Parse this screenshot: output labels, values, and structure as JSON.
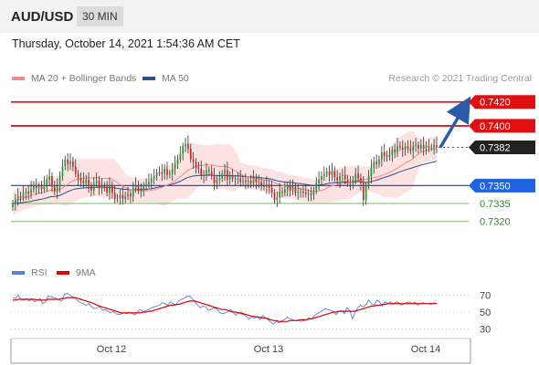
{
  "header": {
    "symbol": "AUD/USD",
    "timeframe": "30 MIN"
  },
  "datetime": "Thursday, October 14, 2021 1:54:36 AM CET",
  "legend": {
    "items": [
      {
        "label": "MA 20 + Bollinger Bands",
        "color": "#f08a86"
      },
      {
        "label": "MA 50",
        "color": "#2d4e8e"
      }
    ],
    "rsi_items": [
      {
        "label": "RSI",
        "color": "#5a7fd6"
      },
      {
        "label": "9MA",
        "color": "#e00000"
      }
    ]
  },
  "copyright": "Research © 2021 Trading Central",
  "colors": {
    "resistance": "#d91a1a",
    "pivot": "#1f56c8",
    "support": "#7cba6a",
    "arrow": "#2a5aa8"
  },
  "chart_data": [
    {
      "type": "candlestick",
      "title": "AUD/USD 30 MIN",
      "x_ticks": [
        "Oct 12",
        "Oct 13",
        "Oct 14"
      ],
      "price_range": [
        0.729,
        0.7432
      ],
      "levels": [
        {
          "label": "0.7420",
          "value": 0.742,
          "kind": "resistance"
        },
        {
          "label": "0.7400",
          "value": 0.74,
          "kind": "resistance"
        },
        {
          "label": "0.7382",
          "value": 0.7382,
          "kind": "last"
        },
        {
          "label": "0.7350",
          "value": 0.735,
          "kind": "pivot"
        },
        {
          "label": "0.7335",
          "value": 0.7335,
          "kind": "support"
        },
        {
          "label": "0.7320",
          "value": 0.732,
          "kind": "support"
        }
      ],
      "close": [
        0.7335,
        0.7338,
        0.7341,
        0.734,
        0.7344,
        0.7345,
        0.7343,
        0.7347,
        0.735,
        0.7348,
        0.7349,
        0.7347,
        0.7351,
        0.7355,
        0.7358,
        0.7349,
        0.7345,
        0.7349,
        0.7358,
        0.7366,
        0.7372,
        0.7368,
        0.737,
        0.7366,
        0.736,
        0.7356,
        0.7354,
        0.7352,
        0.7355,
        0.735,
        0.7346,
        0.7352,
        0.7354,
        0.7348,
        0.735,
        0.7349,
        0.7344,
        0.735,
        0.7344,
        0.7339,
        0.734,
        0.7342,
        0.7339,
        0.7341,
        0.7343,
        0.7341,
        0.7348,
        0.735,
        0.7346,
        0.7346,
        0.735,
        0.7351,
        0.7353,
        0.7356,
        0.7358,
        0.7361,
        0.7361,
        0.736,
        0.7364,
        0.7359,
        0.736,
        0.7364,
        0.7368,
        0.7372,
        0.7377,
        0.7383,
        0.7385,
        0.7381,
        0.7372,
        0.737,
        0.7365,
        0.7364,
        0.7358,
        0.7359,
        0.7363,
        0.7362,
        0.7358,
        0.7352,
        0.7355,
        0.7356,
        0.736,
        0.7363,
        0.7355,
        0.7358,
        0.7356,
        0.7356,
        0.7356,
        0.7353,
        0.7354,
        0.7353,
        0.7354,
        0.7352,
        0.7356,
        0.7353,
        0.7353,
        0.735,
        0.7349,
        0.7351,
        0.7348,
        0.7344,
        0.7338,
        0.734,
        0.7345,
        0.7344,
        0.7347,
        0.735,
        0.7346,
        0.7348,
        0.7344,
        0.7345,
        0.7345,
        0.7344,
        0.7343,
        0.7343,
        0.7342,
        0.7346,
        0.7352,
        0.7355,
        0.7358,
        0.736,
        0.7362,
        0.7359,
        0.7362,
        0.7357,
        0.7354,
        0.7358,
        0.7359,
        0.7355,
        0.7352,
        0.7352,
        0.7355,
        0.736,
        0.7356,
        0.7352,
        0.7338,
        0.735,
        0.7358,
        0.7365,
        0.737,
        0.7368,
        0.7372,
        0.7378,
        0.7375,
        0.7374,
        0.7376,
        0.738,
        0.7378,
        0.7383,
        0.7382,
        0.738,
        0.7383,
        0.7381,
        0.7379,
        0.7383,
        0.7384,
        0.7381,
        0.7384,
        0.7381,
        0.7383,
        0.7382,
        0.7382,
        0.7384,
        0.7382
      ],
      "forecast": {
        "from": "0.7382",
        "to": "0.7420"
      }
    },
    {
      "type": "line",
      "title": "RSI",
      "y_ticks": [
        "70",
        "50",
        "30"
      ],
      "ylim": [
        20,
        80
      ],
      "series": [
        {
          "name": "RSI",
          "values": [
            67,
            66,
            70,
            65,
            64,
            66,
            63,
            66,
            62,
            64,
            66,
            60,
            62,
            69,
            68,
            67,
            66,
            64,
            63,
            71,
            72,
            70,
            68,
            66,
            63,
            61,
            60,
            58,
            60,
            56,
            54,
            55,
            56,
            52,
            53,
            51,
            49,
            51,
            48,
            47,
            48,
            49,
            48,
            50,
            48,
            47,
            51,
            53,
            50,
            52,
            53,
            55,
            56,
            57,
            58,
            61,
            60,
            58,
            62,
            60,
            58,
            63,
            65,
            66,
            68,
            69,
            66,
            62,
            58,
            55,
            57,
            56,
            52,
            53,
            55,
            54,
            50,
            48,
            49,
            50,
            53,
            51,
            46,
            49,
            48,
            47,
            45,
            42,
            44,
            43,
            45,
            41,
            46,
            43,
            41,
            38,
            36,
            39,
            37,
            40,
            41,
            44,
            42,
            41,
            40,
            41,
            39,
            40,
            41,
            43,
            42,
            46,
            48,
            50,
            52,
            54,
            53,
            52,
            51,
            47,
            51,
            52,
            48,
            55,
            52,
            42,
            50,
            55,
            58,
            56,
            59,
            64,
            60,
            58,
            64,
            62,
            57,
            62,
            60,
            62,
            59,
            62,
            61,
            58,
            60,
            61,
            62,
            60,
            62,
            58,
            60,
            61,
            60,
            60,
            59,
            61,
            60
          ]
        },
        {
          "name": "9MA",
          "values": [
            64,
            64,
            65,
            65,
            65,
            65,
            65,
            65,
            65,
            64,
            64,
            64,
            64,
            65,
            65,
            65,
            65,
            65,
            66,
            66,
            67,
            67,
            67,
            67,
            66,
            65,
            64,
            63,
            62,
            61,
            60,
            58,
            57,
            56,
            55,
            54,
            53,
            52,
            51,
            50,
            49,
            49,
            49,
            49,
            49,
            49,
            49,
            49,
            50,
            50,
            51,
            51,
            52,
            53,
            54,
            55,
            56,
            57,
            58,
            58,
            59,
            59,
            60,
            61,
            62,
            63,
            63,
            63,
            62,
            61,
            60,
            59,
            58,
            57,
            56,
            55,
            54,
            53,
            53,
            52,
            51,
            50,
            50,
            49,
            49,
            48,
            47,
            46,
            45,
            45,
            44,
            44,
            43,
            43,
            42,
            41,
            40,
            40,
            39,
            39,
            39,
            39,
            40,
            40,
            40,
            40,
            41,
            41,
            41,
            42,
            42,
            43,
            44,
            45,
            46,
            47,
            48,
            49,
            50,
            50,
            51,
            51,
            51,
            51,
            51,
            51,
            51,
            52,
            53,
            54,
            55,
            56,
            57,
            57,
            58,
            58,
            59,
            59,
            60,
            60,
            60,
            60,
            60,
            60,
            60,
            60,
            60,
            60,
            60,
            60,
            60,
            60,
            60,
            60,
            60,
            60,
            60
          ]
        }
      ]
    }
  ]
}
